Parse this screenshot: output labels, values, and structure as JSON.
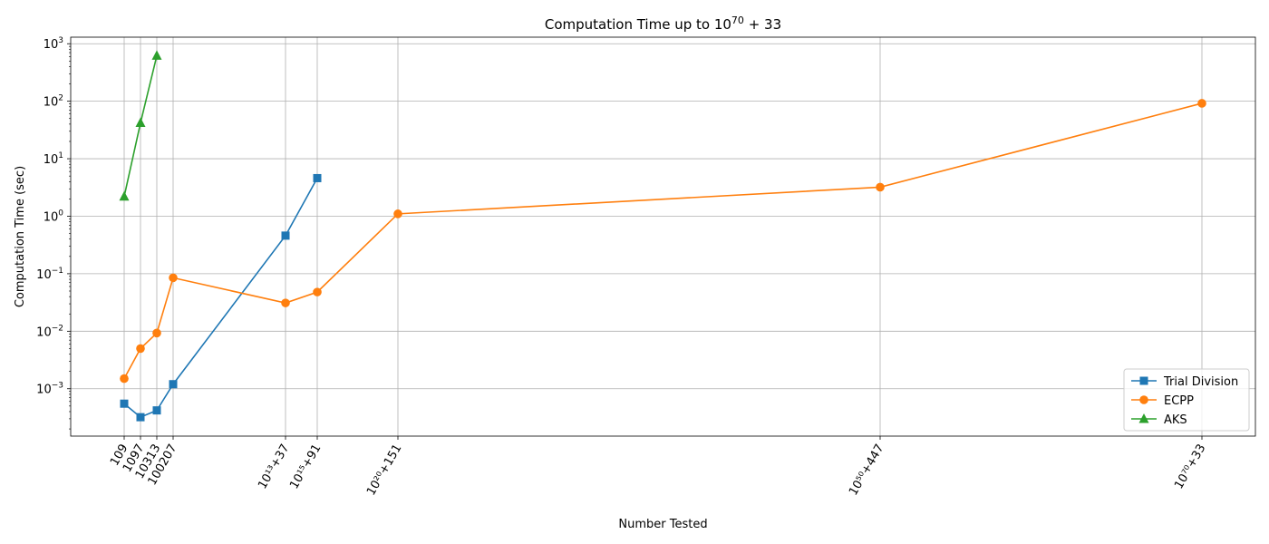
{
  "chart_data": {
    "type": "line",
    "title": "Computation Time up to 10^70 + 33",
    "title_parts": {
      "prefix": "Computation Time up to 10",
      "exponent": "70",
      "suffix": " + 33"
    },
    "xlabel": "Number Tested",
    "ylabel": "Computation Time (sec)",
    "y_scale": "log",
    "ylim": [
      0.00015,
      1300
    ],
    "xlim": [
      -0.6,
      13.6
    ],
    "grid": true,
    "legend_position": "lower-right",
    "categories": [
      {
        "label": "109",
        "x": 0
      },
      {
        "label": "1097",
        "x": 0.5
      },
      {
        "label": "10313",
        "x": 1
      },
      {
        "label": "100207",
        "x": 1.5
      },
      {
        "label": "10¹³+37",
        "x": 5
      },
      {
        "label": "10¹⁵+91",
        "x": 6
      },
      {
        "label": "10²⁰+151",
        "x": 8.5
      },
      {
        "label": "10⁵⁰+447",
        "x": 23.5
      },
      {
        "label": "10⁷⁰+33",
        "x": 33.5
      }
    ],
    "y_ticks": [
      {
        "value": 0.001,
        "mantissa": "10",
        "exponent": "−3"
      },
      {
        "value": 0.01,
        "mantissa": "10",
        "exponent": "−2"
      },
      {
        "value": 0.1,
        "mantissa": "10",
        "exponent": "−1"
      },
      {
        "value": 1,
        "mantissa": "10",
        "exponent": "0"
      },
      {
        "value": 10,
        "mantissa": "10",
        "exponent": "1"
      },
      {
        "value": 100,
        "mantissa": "10",
        "exponent": "2"
      },
      {
        "value": 1000,
        "mantissa": "10",
        "exponent": "3"
      }
    ],
    "series": [
      {
        "name": "Trial Division",
        "color": "#1f77b4",
        "marker": "square",
        "points": [
          {
            "number": "109",
            "value": 0.00055
          },
          {
            "number": "1097",
            "value": 0.00032
          },
          {
            "number": "10313",
            "value": 0.00042
          },
          {
            "number": "100207",
            "value": 0.0012
          },
          {
            "number": "10¹³+37",
            "value": 0.46
          },
          {
            "number": "10¹⁵+91",
            "value": 4.6
          }
        ]
      },
      {
        "name": "ECPP",
        "color": "#ff7f0e",
        "marker": "circle",
        "points": [
          {
            "number": "109",
            "value": 0.0015
          },
          {
            "number": "1097",
            "value": 0.005
          },
          {
            "number": "10313",
            "value": 0.0093
          },
          {
            "number": "100207",
            "value": 0.085
          },
          {
            "number": "10¹³+37",
            "value": 0.031
          },
          {
            "number": "10¹⁵+91",
            "value": 0.048
          },
          {
            "number": "10²⁰+151",
            "value": 1.1
          },
          {
            "number": "10⁵⁰+447",
            "value": 3.2
          },
          {
            "number": "10⁷⁰+33",
            "value": 92
          }
        ]
      },
      {
        "name": "AKS",
        "color": "#2ca02c",
        "marker": "triangle",
        "points": [
          {
            "number": "109",
            "value": 2.2
          },
          {
            "number": "1097",
            "value": 42
          },
          {
            "number": "10313",
            "value": 620
          }
        ]
      }
    ]
  }
}
